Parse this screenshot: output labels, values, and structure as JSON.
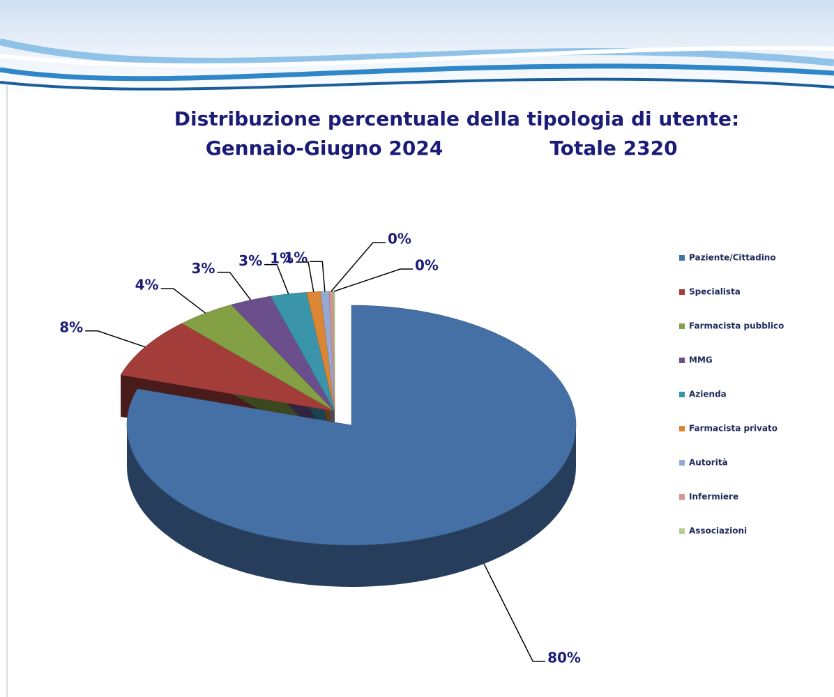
{
  "chart_data": {
    "type": "pie",
    "title": "Distribuzione percentuale della tipologia di utente:",
    "subtitle": "Gennaio-Giugno 2024",
    "total": "Totale  2320",
    "categories": [
      "Paziente/Cittadino",
      "Specialista",
      "Farmacista pubblico",
      "MMG",
      "Azienda",
      "Farmacista privato",
      "Autorità",
      "Infermiere",
      "Associazioni"
    ],
    "values": [
      79.9,
      8.2,
      4.3,
      3.0,
      2.6,
      1.0,
      0.6,
      0.3,
      0.1
    ],
    "value_labels": [
      "80%",
      "8%",
      "4%",
      "3%",
      "3%",
      "1%",
      "1%",
      "0%",
      "0%"
    ],
    "colors": [
      "#4570a5",
      "#a23d3a",
      "#84a045",
      "#6a4f8c",
      "#3a95aa",
      "#dc8534",
      "#95aad2",
      "#d39594",
      "#b6cf8e"
    ],
    "legend": "right"
  }
}
